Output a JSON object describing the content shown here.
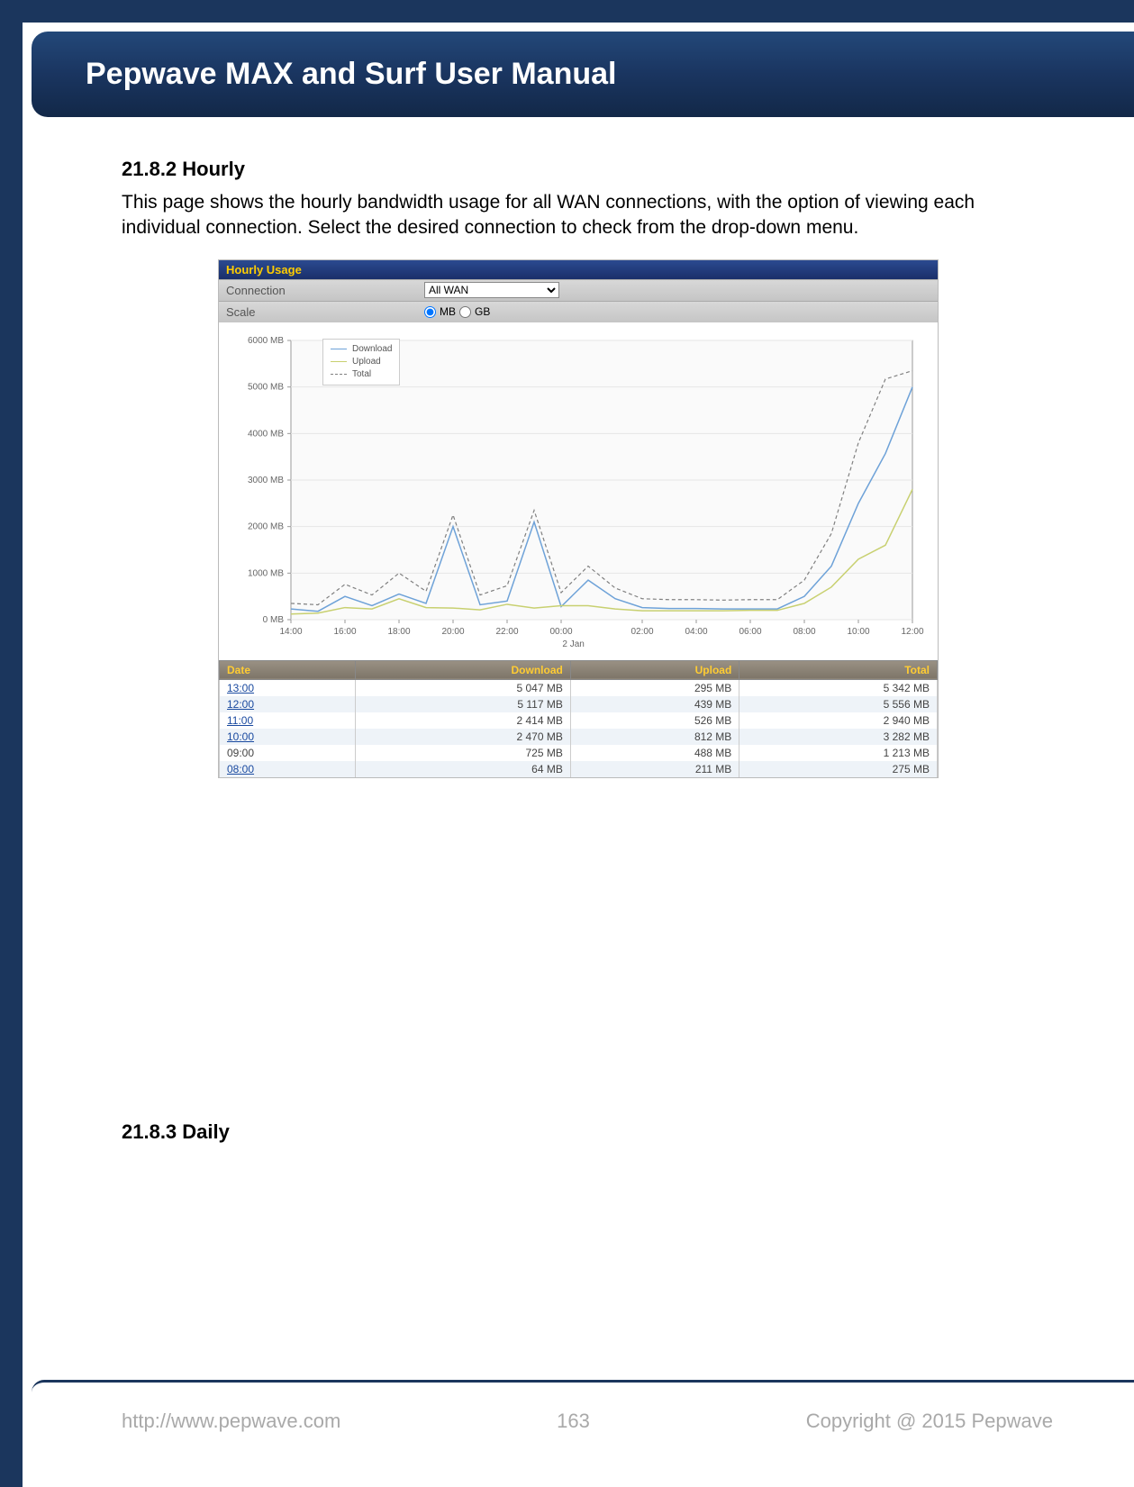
{
  "header": {
    "title": "Pepwave MAX and Surf User Manual"
  },
  "section1": {
    "number_title": "21.8.2 Hourly",
    "paragraph": "This page shows the hourly bandwidth usage for all WAN connections, with the option of viewing each individual connection. Select the desired connection to check from the drop-down menu."
  },
  "ui": {
    "panel_title": "Hourly Usage",
    "connection_label": "Connection",
    "connection_value": "All WAN",
    "scale_label": "Scale",
    "scale_mb": "MB",
    "scale_gb": "GB",
    "scale_selected": "MB"
  },
  "chart": {
    "legend": {
      "download": "Download",
      "upload": "Upload",
      "total": "Total"
    },
    "colors": {
      "download": "#6ea2d8",
      "upload": "#c8d070",
      "total": "#808080",
      "grid": "#e6e6e6",
      "axis": "#999999"
    },
    "ylim": [
      0,
      6000
    ],
    "ytick_step": 1000,
    "y_unit": "MB",
    "x_labels": [
      "14:00",
      "16:00",
      "18:00",
      "20:00",
      "22:00",
      "00:00",
      "02:00",
      "04:00",
      "06:00",
      "08:00",
      "10:00",
      "12:00"
    ],
    "x_sub_label": "2 Jan",
    "series": {
      "download": [
        230,
        180,
        500,
        300,
        550,
        350,
        2000,
        320,
        400,
        2100,
        280,
        850,
        450,
        260,
        240,
        240,
        230,
        230,
        230,
        500,
        1150,
        2500,
        3570,
        5000
      ],
      "upload": [
        120,
        140,
        260,
        230,
        450,
        260,
        250,
        210,
        330,
        250,
        300,
        300,
        230,
        190,
        190,
        190,
        190,
        200,
        200,
        350,
        700,
        1300,
        1600,
        2800
      ],
      "total": [
        350,
        320,
        760,
        530,
        1000,
        610,
        2250,
        530,
        730,
        2350,
        580,
        1150,
        680,
        450,
        430,
        430,
        420,
        430,
        430,
        850,
        1850,
        3800,
        5170,
        5350
      ]
    }
  },
  "table": {
    "headers": [
      "Date",
      "Download",
      "Upload",
      "Total"
    ],
    "rows": [
      {
        "date": "13:00",
        "download": "5 047 MB",
        "upload": "295 MB",
        "total": "5 342 MB",
        "link": true
      },
      {
        "date": "12:00",
        "download": "5 117 MB",
        "upload": "439 MB",
        "total": "5 556 MB",
        "link": true
      },
      {
        "date": "11:00",
        "download": "2 414 MB",
        "upload": "526 MB",
        "total": "2 940 MB",
        "link": true
      },
      {
        "date": "10:00",
        "download": "2 470 MB",
        "upload": "812 MB",
        "total": "3 282 MB",
        "link": true
      },
      {
        "date": "09:00",
        "download": "725 MB",
        "upload": "488 MB",
        "total": "1 213 MB",
        "link": false
      },
      {
        "date": "08:00",
        "download": "64 MB",
        "upload": "211 MB",
        "total": "275 MB",
        "link": true
      }
    ]
  },
  "section2": {
    "number_title": "21.8.3 Daily"
  },
  "footer": {
    "url": "http://www.pepwave.com",
    "page": "163",
    "copyright": "Copyright @ 2015 Pepwave"
  }
}
